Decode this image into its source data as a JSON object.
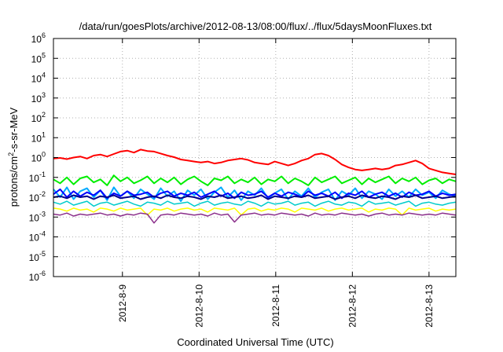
{
  "chart_data": {
    "type": "line",
    "title": "/data/run/goesPlots/archive/2012-08-13/08:00/flux/../flux/5daysMoonFluxes.txt",
    "xlabel": "Coordinated Universal Time (UTC)",
    "ylabel": {
      "pre": "protons/cm",
      "sup": "2",
      "post": "-s-sr-MeV"
    },
    "yscale": "log",
    "ylim_exp": [
      -6,
      6
    ],
    "y_tick_base": "10",
    "y_ticks": [
      {
        "exp": -6,
        "sup": "-6"
      },
      {
        "exp": -5,
        "sup": "-5"
      },
      {
        "exp": -4,
        "sup": "-4"
      },
      {
        "exp": -3,
        "sup": "-3"
      },
      {
        "exp": -2,
        "sup": "-2"
      },
      {
        "exp": -1,
        "sup": "-1"
      },
      {
        "exp": 0,
        "sup": "0"
      },
      {
        "exp": 1,
        "sup": "1"
      },
      {
        "exp": 2,
        "sup": "2"
      },
      {
        "exp": 3,
        "sup": "3"
      },
      {
        "exp": 4,
        "sup": "4"
      },
      {
        "exp": 5,
        "sup": "5"
      },
      {
        "exp": 6,
        "sup": "6"
      }
    ],
    "xlim_days": [
      -0.9,
      4.35
    ],
    "x_ticks": [
      {
        "day": 0,
        "label": "2012-8-9"
      },
      {
        "day": 1,
        "label": "2012-8-10"
      },
      {
        "day": 2,
        "label": "2012-8-11"
      },
      {
        "day": 3,
        "label": "2012-8-12"
      },
      {
        "day": 4,
        "label": "2012-8-13"
      }
    ],
    "grid": true,
    "series": [
      {
        "color": "#ff0000",
        "width": 2,
        "log_values": [
          -0.05,
          -0.02,
          -0.08,
          0.0,
          0.05,
          -0.05,
          0.1,
          0.15,
          0.05,
          0.18,
          0.3,
          0.35,
          0.25,
          0.4,
          0.33,
          0.3,
          0.2,
          0.1,
          0.02,
          -0.1,
          -0.15,
          -0.2,
          -0.25,
          -0.2,
          -0.3,
          -0.25,
          -0.15,
          -0.1,
          -0.05,
          -0.12,
          -0.25,
          -0.3,
          -0.35,
          -0.2,
          -0.3,
          -0.4,
          -0.3,
          -0.15,
          -0.05,
          0.15,
          0.2,
          0.1,
          -0.1,
          -0.35,
          -0.5,
          -0.6,
          -0.65,
          -0.6,
          -0.55,
          -0.6,
          -0.55,
          -0.4,
          -0.35,
          -0.25,
          -0.15,
          -0.3,
          -0.55,
          -0.65,
          -0.75,
          -0.8,
          -0.85
        ]
      },
      {
        "color": "#00ee00",
        "width": 2,
        "log_values": [
          -1.1,
          -1.3,
          -1.0,
          -1.35,
          -1.05,
          -0.95,
          -1.25,
          -1.1,
          -1.4,
          -0.9,
          -1.2,
          -1.0,
          -1.3,
          -1.15,
          -0.95,
          -1.3,
          -1.05,
          -1.25,
          -1.0,
          -1.35,
          -1.1,
          -0.95,
          -1.2,
          -1.4,
          -1.05,
          -1.15,
          -0.95,
          -1.3,
          -1.1,
          -1.25,
          -1.0,
          -1.35,
          -1.1,
          -1.2,
          -0.95,
          -1.3,
          -1.05,
          -1.2,
          -1.4,
          -1.0,
          -1.25,
          -1.1,
          -0.95,
          -1.3,
          -1.15,
          -1.0,
          -1.35,
          -1.05,
          -1.25,
          -1.1,
          -0.95,
          -1.3,
          -1.05,
          -1.2,
          -1.0,
          -1.35,
          -1.15,
          -1.05,
          -1.3,
          -1.1,
          -1.2
        ]
      },
      {
        "color": "#00aaff",
        "width": 2,
        "log_values": [
          -1.6,
          -2.0,
          -1.5,
          -2.1,
          -1.7,
          -1.55,
          -2.0,
          -1.65,
          -2.15,
          -1.5,
          -1.95,
          -1.7,
          -2.05,
          -1.6,
          -1.85,
          -2.1,
          -1.55,
          -1.95,
          -1.7,
          -2.2,
          -1.65,
          -1.9,
          -1.6,
          -2.1,
          -1.75,
          -1.5,
          -2.0,
          -1.65,
          -2.15,
          -1.7,
          -1.9,
          -1.55,
          -2.05,
          -1.8,
          -1.6,
          -2.1,
          -1.7,
          -1.95,
          -1.55,
          -2.0,
          -1.75,
          -1.6,
          -2.15,
          -1.7,
          -1.9,
          -1.55,
          -2.05,
          -1.7,
          -1.85,
          -2.1,
          -1.6,
          -1.95,
          -1.7,
          -2.0,
          -1.6,
          -1.9,
          -1.75,
          -2.05,
          -1.65,
          -1.85,
          -1.95
        ]
      },
      {
        "color": "#0000ff",
        "width": 2,
        "log_values": [
          -1.85,
          -1.6,
          -2.0,
          -1.7,
          -1.95,
          -1.75,
          -1.9,
          -1.65,
          -2.05,
          -1.8,
          -1.95,
          -1.7,
          -1.9,
          -1.85,
          -1.75,
          -2.0,
          -1.8,
          -1.7,
          -1.95,
          -1.8,
          -1.9,
          -1.75,
          -2.0,
          -1.85,
          -1.7,
          -1.95,
          -1.8,
          -2.05,
          -1.75,
          -1.9,
          -1.85,
          -1.7,
          -2.0,
          -1.8,
          -1.95,
          -1.75,
          -1.85,
          -2.0,
          -1.7,
          -1.9,
          -1.8,
          -1.95,
          -1.75,
          -2.05,
          -1.8,
          -1.9,
          -1.7,
          -2.0,
          -1.85,
          -1.75,
          -1.95,
          -1.8,
          -2.0,
          -1.75,
          -1.9,
          -1.85,
          -1.7,
          -1.95,
          -1.8,
          -1.9,
          -1.85
        ]
      },
      {
        "color": "#00008b",
        "width": 2,
        "log_values": [
          -2.0,
          -1.95,
          -2.05,
          -1.9,
          -2.0,
          -1.95,
          -2.1,
          -1.95,
          -2.0,
          -1.9,
          -2.05,
          -2.0,
          -1.95,
          -2.1,
          -2.0,
          -1.95,
          -2.05,
          -1.9,
          -2.0,
          -2.05,
          -1.95,
          -2.0,
          -2.1,
          -1.95,
          -2.0,
          -1.9,
          -2.05,
          -2.0,
          -1.95,
          -2.05,
          -2.0,
          -1.9,
          -2.1,
          -1.95,
          -2.0,
          -2.05,
          -1.95,
          -2.0,
          -1.9,
          -2.05,
          -2.0,
          -1.95,
          -2.1,
          -2.0,
          -1.95,
          -2.05,
          -1.9,
          -2.0,
          -2.05,
          -1.95,
          -2.0,
          -2.1,
          -1.95,
          -2.0,
          -1.9,
          -2.05,
          -2.0,
          -1.95,
          -2.05,
          -2.0,
          -1.95
        ]
      },
      {
        "color": "#00cccc",
        "width": 1.5,
        "log_values": [
          -2.25,
          -2.35,
          -2.2,
          -2.4,
          -2.3,
          -2.2,
          -2.45,
          -2.3,
          -2.25,
          -2.4,
          -2.3,
          -2.2,
          -2.35,
          -2.45,
          -2.25,
          -2.3,
          -2.4,
          -2.2,
          -2.35,
          -2.3,
          -2.25,
          -2.45,
          -2.3,
          -2.2,
          -2.4,
          -2.3,
          -2.25,
          -2.35,
          -2.4,
          -2.2,
          -2.3,
          -2.45,
          -2.25,
          -2.35,
          -2.3,
          -2.2,
          -2.4,
          -2.3,
          -2.25,
          -2.45,
          -2.3,
          -2.2,
          -2.35,
          -2.4,
          -2.25,
          -2.3,
          -2.45,
          -2.2,
          -2.35,
          -2.3,
          -2.25,
          -2.4,
          -2.3,
          -2.2,
          -2.45,
          -2.3,
          -2.25,
          -2.35,
          -2.4,
          -2.3,
          -2.25
        ]
      },
      {
        "color": "#ffff00",
        "width": 1.5,
        "log_values": [
          -2.55,
          -2.6,
          -2.7,
          -2.55,
          -2.65,
          -2.6,
          -2.75,
          -2.55,
          -2.6,
          -2.7,
          -2.55,
          -2.65,
          -2.6,
          -2.55,
          -2.9,
          -2.6,
          -2.65,
          -2.55,
          -2.7,
          -2.6,
          -2.55,
          -2.65,
          -2.6,
          -2.75,
          -2.55,
          -2.6,
          -2.65,
          -2.55,
          -2.9,
          -2.6,
          -2.55,
          -2.7,
          -2.6,
          -2.65,
          -2.55,
          -2.6,
          -2.75,
          -2.55,
          -2.6,
          -2.65,
          -2.55,
          -2.7,
          -2.6,
          -2.55,
          -2.65,
          -2.6,
          -2.55,
          -2.75,
          -2.6,
          -2.65,
          -2.55,
          -2.6,
          -2.9,
          -2.55,
          -2.65,
          -2.6,
          -2.55,
          -2.7,
          -2.6,
          -2.65,
          -2.6
        ]
      },
      {
        "color": "#8b2f8b",
        "width": 1.5,
        "log_values": [
          -2.85,
          -2.9,
          -2.8,
          -2.95,
          -2.85,
          -2.9,
          -2.85,
          -2.8,
          -2.9,
          -2.85,
          -2.95,
          -2.85,
          -2.9,
          -2.8,
          -2.85,
          -3.3,
          -2.9,
          -2.85,
          -2.9,
          -2.8,
          -2.85,
          -2.9,
          -2.85,
          -2.95,
          -2.8,
          -2.9,
          -2.85,
          -3.25,
          -2.9,
          -2.85,
          -2.8,
          -2.9,
          -2.85,
          -2.9,
          -2.8,
          -2.85,
          -2.9,
          -2.85,
          -2.95,
          -2.8,
          -2.9,
          -2.85,
          -2.9,
          -2.8,
          -2.85,
          -2.9,
          -2.85,
          -2.95,
          -2.85,
          -2.8,
          -2.9,
          -2.85,
          -2.9,
          -2.8,
          -2.85,
          -2.9,
          -2.85,
          -2.9,
          -2.8,
          -2.85,
          -2.9
        ]
      }
    ]
  }
}
